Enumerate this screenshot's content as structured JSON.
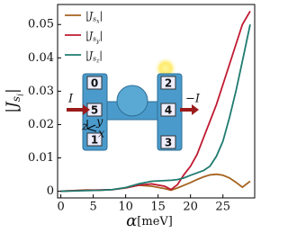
{
  "chart_data": {
    "type": "line",
    "xlabel_symbol": "α",
    "xlabel_unit": "[meV]",
    "ylabel": "|Jsi|",
    "x": [
      0,
      2,
      4,
      6,
      8,
      10,
      12,
      14,
      16,
      17,
      18,
      19,
      20,
      21,
      22,
      23,
      24,
      25,
      26,
      27,
      28,
      29.2
    ],
    "series": [
      {
        "name": "|Jsx|",
        "color": "#a5631f",
        "values": [
          0,
          0.0002,
          0.0004,
          0.0003,
          0.0005,
          0.001,
          0.0018,
          0.0015,
          0.0008,
          0.0003,
          0.001,
          0.0018,
          0.0026,
          0.0035,
          0.0043,
          0.0049,
          0.0051,
          0.0048,
          0.004,
          0.0027,
          0.0012,
          0.003
        ]
      },
      {
        "name": "|Jsy|",
        "color": "#c01a32",
        "values": [
          0,
          0.0002,
          0.0003,
          0.0004,
          0.0005,
          0.001,
          0.0018,
          0.0022,
          0.0015,
          0.0005,
          0.002,
          0.005,
          0.0075,
          0.011,
          0.016,
          0.021,
          0.026,
          0.032,
          0.038,
          0.044,
          0.05,
          0.054
        ]
      },
      {
        "name": "|Jsz|",
        "color": "#1e7b6f",
        "values": [
          0,
          0.0001,
          0.0002,
          0.0003,
          0.0005,
          0.0011,
          0.0022,
          0.003,
          0.0032,
          0.0033,
          0.0035,
          0.004,
          0.0048,
          0.0055,
          0.0062,
          0.0075,
          0.0105,
          0.015,
          0.022,
          0.03,
          0.039,
          0.05
        ]
      }
    ],
    "xlim": [
      -0.5,
      29.9
    ],
    "ylim": [
      -0.002,
      0.056
    ],
    "xticks": [
      0,
      5,
      10,
      15,
      20,
      25
    ],
    "yticks": [
      0,
      0.01,
      0.02,
      0.03,
      0.04,
      0.05
    ],
    "legend": "upper left",
    "inset": {
      "terminals": [
        "0",
        "5",
        "1",
        "2",
        "4",
        "3"
      ],
      "current_in": "I",
      "current_out": "−I",
      "axes": [
        "z",
        "y",
        "x"
      ]
    }
  }
}
